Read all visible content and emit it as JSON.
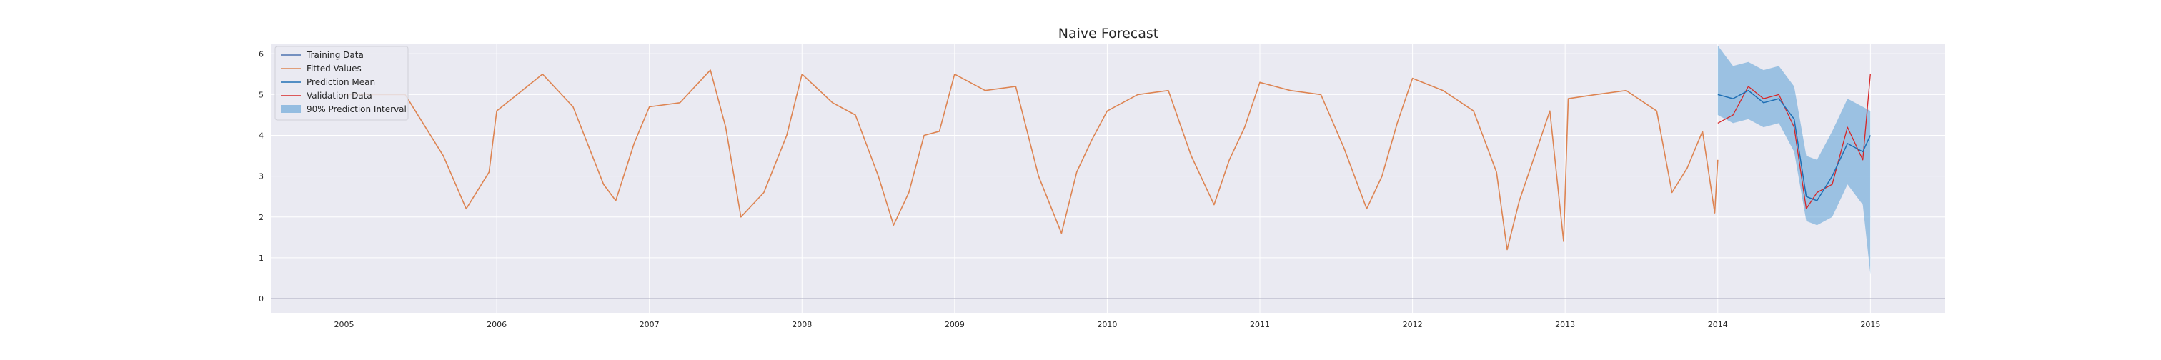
{
  "chart_data": {
    "type": "line",
    "title": "Naive Forecast",
    "xlabel": "",
    "ylabel": "",
    "x_ticks": [
      "2005",
      "2006",
      "2007",
      "2008",
      "2009",
      "2010",
      "2011",
      "2012",
      "2013",
      "2014",
      "2015"
    ],
    "y_ticks": [
      "0",
      "1",
      "2",
      "3",
      "4",
      "5",
      "6"
    ],
    "xlim": [
      2004.52,
      2015.49
    ],
    "ylim": [
      -0.35,
      6.25
    ],
    "grid": true,
    "legend_position": "top-left",
    "colors": {
      "training": "#4c72b0",
      "fitted": "#dd8452",
      "prediction_mean": "#1f6fb4",
      "validation": "#d62728",
      "interval": "#5a9ed6",
      "background": "#eaeaf2",
      "grid": "#ffffff"
    },
    "series": [
      {
        "name": "Training Data",
        "role": "training"
      },
      {
        "name": "Fitted Values",
        "role": "fitted",
        "x": [
          2005.0,
          2005.4,
          2005.65,
          2005.8,
          2005.95,
          2006.0,
          2006.2,
          2006.3,
          2006.5,
          2006.7,
          2006.78,
          2006.9,
          2007.0,
          2007.2,
          2007.4,
          2007.5,
          2007.6,
          2007.75,
          2007.9,
          2008.0,
          2008.2,
          2008.35,
          2008.5,
          2008.6,
          2008.7,
          2008.8,
          2008.9,
          2009.0,
          2009.2,
          2009.4,
          2009.55,
          2009.7,
          2009.8,
          2009.9,
          2010.0,
          2010.2,
          2010.4,
          2010.55,
          2010.7,
          2010.8,
          2010.9,
          2011.0,
          2011.2,
          2011.4,
          2011.55,
          2011.7,
          2011.8,
          2011.9,
          2012.0,
          2012.2,
          2012.4,
          2012.55,
          2012.62,
          2012.7,
          2012.8,
          2012.9,
          2012.99,
          2013.02,
          2013.2,
          2013.4,
          2013.6,
          2013.7,
          2013.8,
          2013.9,
          2013.98,
          2014.0
        ],
        "y": [
          5.0,
          5.0,
          3.5,
          2.2,
          3.1,
          4.6,
          5.2,
          5.5,
          4.7,
          2.8,
          2.4,
          3.8,
          4.7,
          4.8,
          5.6,
          4.2,
          2.0,
          2.6,
          4.0,
          5.5,
          4.8,
          4.5,
          3.0,
          1.8,
          2.6,
          4.0,
          4.1,
          5.5,
          5.1,
          5.2,
          3.0,
          1.6,
          3.1,
          3.9,
          4.6,
          5.0,
          5.1,
          3.5,
          2.3,
          3.4,
          4.2,
          5.3,
          5.1,
          5.0,
          3.7,
          2.2,
          3.0,
          4.3,
          5.4,
          5.1,
          4.6,
          3.1,
          1.2,
          2.4,
          3.5,
          4.6,
          1.4,
          4.9,
          5.0,
          5.1,
          4.6,
          2.6,
          3.2,
          4.1,
          2.1,
          3.4
        ]
      },
      {
        "name": "Prediction Mean",
        "role": "prediction",
        "x": [
          2014.0,
          2014.1,
          2014.2,
          2014.3,
          2014.4,
          2014.5,
          2014.58,
          2014.65,
          2014.75,
          2014.85,
          2014.95,
          2015.0
        ],
        "y": [
          5.0,
          4.9,
          5.1,
          4.8,
          4.9,
          4.4,
          2.5,
          2.4,
          3.0,
          3.8,
          3.6,
          4.0
        ]
      },
      {
        "name": "Validation Data",
        "role": "validation",
        "x": [
          2014.0,
          2014.1,
          2014.2,
          2014.3,
          2014.4,
          2014.5,
          2014.58,
          2014.65,
          2014.75,
          2014.85,
          2014.95,
          2015.0
        ],
        "y": [
          4.3,
          4.5,
          5.2,
          4.9,
          5.0,
          4.2,
          2.2,
          2.6,
          2.8,
          4.2,
          3.4,
          5.5
        ]
      },
      {
        "name": "90% Prediction Interval",
        "role": "interval",
        "x": [
          2014.0,
          2014.1,
          2014.2,
          2014.3,
          2014.4,
          2014.5,
          2014.58,
          2014.65,
          2014.75,
          2014.85,
          2014.95,
          2015.0
        ],
        "lower": [
          4.5,
          4.3,
          4.4,
          4.2,
          4.3,
          3.6,
          1.9,
          1.8,
          2.0,
          2.8,
          2.3,
          0.6
        ],
        "upper": [
          6.2,
          5.7,
          5.8,
          5.6,
          5.7,
          5.2,
          3.5,
          3.4,
          4.1,
          4.9,
          4.7,
          4.6
        ]
      }
    ]
  }
}
